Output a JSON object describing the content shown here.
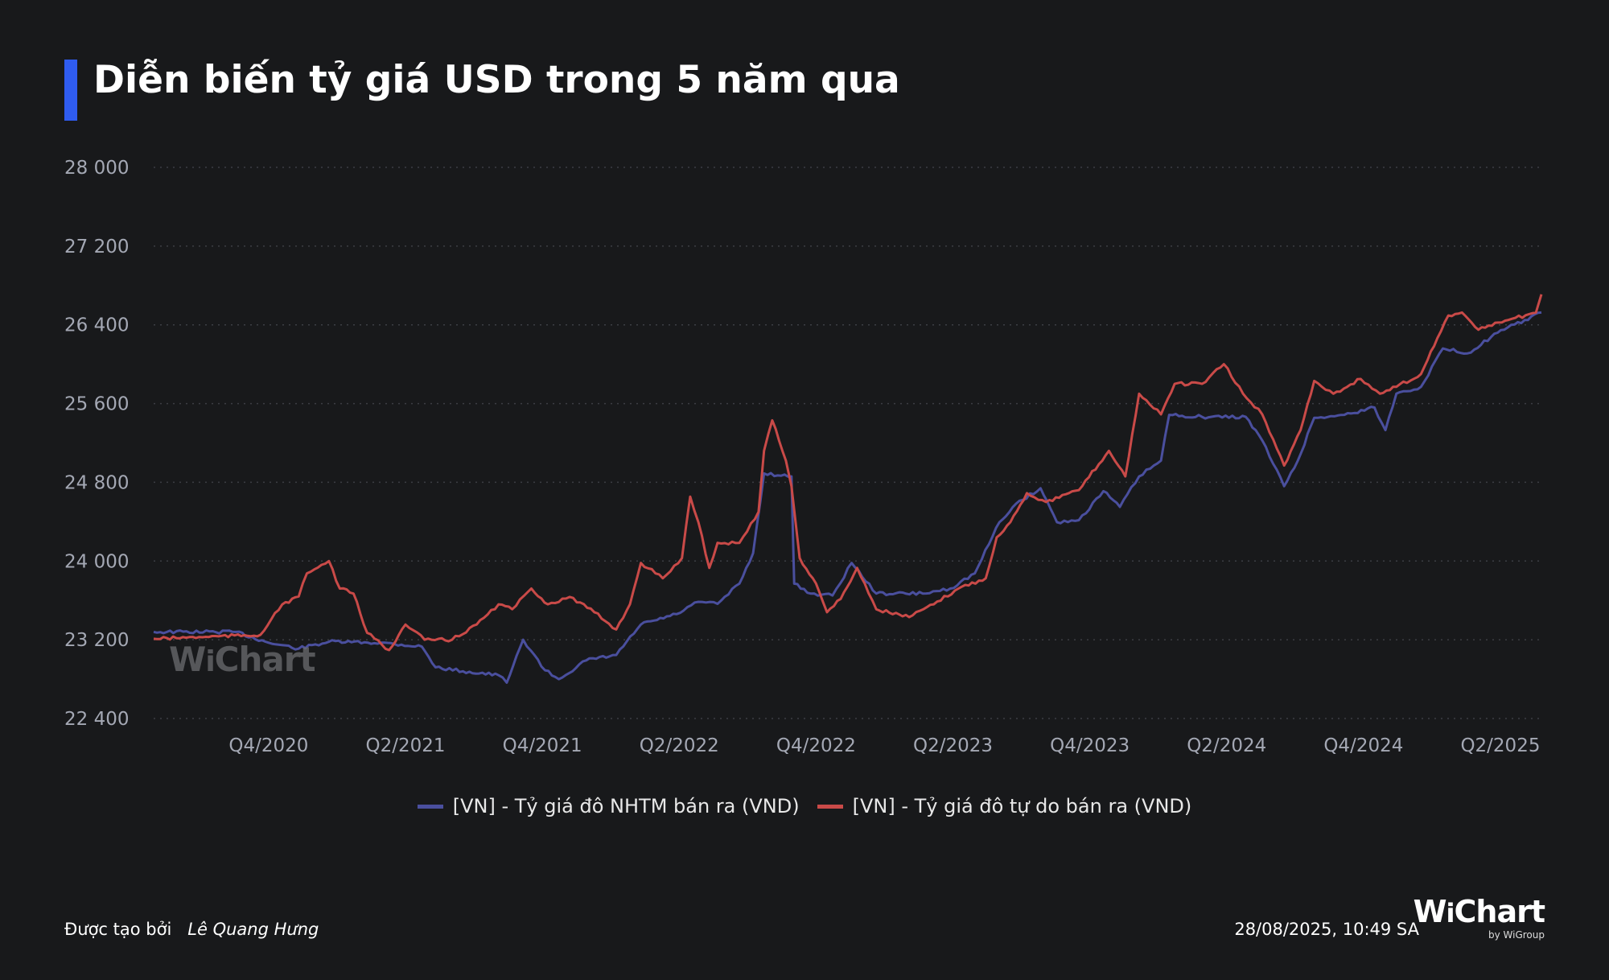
{
  "colors": {
    "background": "#18191b",
    "accent": "#2f5cf0",
    "series_nhtm": "#4a4f9e",
    "series_free": "#c94a48"
  },
  "header": {
    "title": "Diễn biến tỷ giá USD trong 5 năm qua"
  },
  "watermark": "WiChart",
  "footer": {
    "created_by_label": "Được tạo bởi",
    "author": "Lê Quang Hưng",
    "datetime": "28/08/2025, 10:49 SA",
    "logo": "WiChart",
    "logo_sub": "by WiGroup"
  },
  "chart_data": {
    "type": "line",
    "title": "Diễn biến tỷ giá USD trong 5 năm qua",
    "xlabel": "",
    "ylabel": "",
    "xlim": [
      2020.33,
      2025.4
    ],
    "ylim": [
      22400,
      28000
    ],
    "yticks": [
      22400,
      23200,
      24000,
      24800,
      25600,
      26400,
      27200,
      28000
    ],
    "ytick_labels": [
      "22 400",
      "23 200",
      "24 000",
      "24 800",
      "25 600",
      "26 400",
      "27 200",
      "28 000"
    ],
    "xticks": [
      2020.75,
      2021.25,
      2021.75,
      2022.25,
      2022.75,
      2023.25,
      2023.75,
      2024.25,
      2024.75,
      2025.25
    ],
    "xtick_labels": [
      "Q4/2020",
      "Q2/2021",
      "Q4/2021",
      "Q2/2022",
      "Q4/2022",
      "Q2/2023",
      "Q4/2023",
      "Q2/2024",
      "Q4/2024",
      "Q2/2025"
    ],
    "grid": true,
    "legend_position": "bottom-center",
    "series": [
      {
        "name": "[VN] - Tỷ giá đô NHTM bán ra (VND)",
        "color": "#4a4f9e",
        "x": [
          2020.33,
          2020.63,
          2020.75,
          2020.86,
          2020.97,
          2021.16,
          2021.31,
          2021.36,
          2021.46,
          2021.59,
          2021.62,
          2021.68,
          2021.76,
          2021.81,
          2021.91,
          2022.02,
          2022.11,
          2022.24,
          2022.32,
          2022.39,
          2022.47,
          2022.52,
          2022.56,
          2022.66,
          2022.67,
          2022.73,
          2022.81,
          2022.88,
          2022.97,
          2023.14,
          2023.24,
          2023.33,
          2023.42,
          2023.48,
          2023.57,
          2023.63,
          2023.71,
          2023.8,
          2023.86,
          2023.93,
          2024.01,
          2024.04,
          2024.16,
          2024.32,
          2024.38,
          2024.46,
          2024.51,
          2024.57,
          2024.68,
          2024.79,
          2024.83,
          2024.87,
          2024.96,
          2025.04,
          2025.13,
          2025.24,
          2025.4
        ],
        "y": [
          23280,
          23280,
          23170,
          23110,
          23180,
          23170,
          23130,
          22920,
          22880,
          22840,
          22765,
          23200,
          22890,
          22800,
          22990,
          23045,
          23355,
          23460,
          23585,
          23565,
          23770,
          24080,
          24890,
          24860,
          23770,
          23670,
          23650,
          23980,
          23670,
          23670,
          23720,
          23875,
          24395,
          24580,
          24740,
          24395,
          24415,
          24710,
          24550,
          24860,
          25020,
          25485,
          25465,
          25465,
          25225,
          24760,
          25020,
          25455,
          25485,
          25560,
          25330,
          25700,
          25770,
          26160,
          26110,
          26320,
          26525
        ]
      },
      {
        "name": "[VN] - Tỷ giá đô tự do bán ra (VND)",
        "color": "#c94a48",
        "x": [
          2020.33,
          2020.52,
          2020.72,
          2020.8,
          2020.86,
          2020.89,
          2020.97,
          2021.01,
          2021.06,
          2021.11,
          2021.19,
          2021.25,
          2021.32,
          2021.42,
          2021.51,
          2021.59,
          2021.64,
          2021.71,
          2021.77,
          2021.85,
          2021.94,
          2022.02,
          2022.07,
          2022.11,
          2022.19,
          2022.26,
          2022.29,
          2022.32,
          2022.36,
          2022.39,
          2022.47,
          2022.54,
          2022.56,
          2022.59,
          2022.64,
          2022.66,
          2022.69,
          2022.75,
          2022.79,
          2022.84,
          2022.9,
          2022.97,
          2023.09,
          2023.18,
          2023.27,
          2023.37,
          2023.41,
          2023.46,
          2023.52,
          2023.59,
          2023.71,
          2023.82,
          2023.88,
          2023.93,
          2024.01,
          2024.06,
          2024.16,
          2024.24,
          2024.31,
          2024.38,
          2024.46,
          2024.52,
          2024.57,
          2024.64,
          2024.74,
          2024.81,
          2024.87,
          2024.96,
          2025.02,
          2025.06,
          2025.11,
          2025.17,
          2025.28,
          2025.38,
          2025.4
        ],
        "y": [
          23210,
          23230,
          23250,
          23560,
          23640,
          23875,
          24000,
          23720,
          23670,
          23270,
          23095,
          23355,
          23200,
          23200,
          23355,
          23560,
          23510,
          23720,
          23560,
          23635,
          23480,
          23305,
          23560,
          23980,
          23825,
          24030,
          24655,
          24395,
          23930,
          24185,
          24185,
          24500,
          25120,
          25430,
          25020,
          24760,
          24030,
          23770,
          23480,
          23615,
          23930,
          23510,
          23430,
          23560,
          23720,
          23825,
          24240,
          24395,
          24690,
          24600,
          24720,
          25120,
          24860,
          25700,
          25490,
          25800,
          25800,
          26000,
          25700,
          25490,
          24970,
          25330,
          25830,
          25700,
          25850,
          25700,
          25770,
          25900,
          26265,
          26495,
          26525,
          26350,
          26450,
          26525,
          26710
        ]
      }
    ]
  }
}
